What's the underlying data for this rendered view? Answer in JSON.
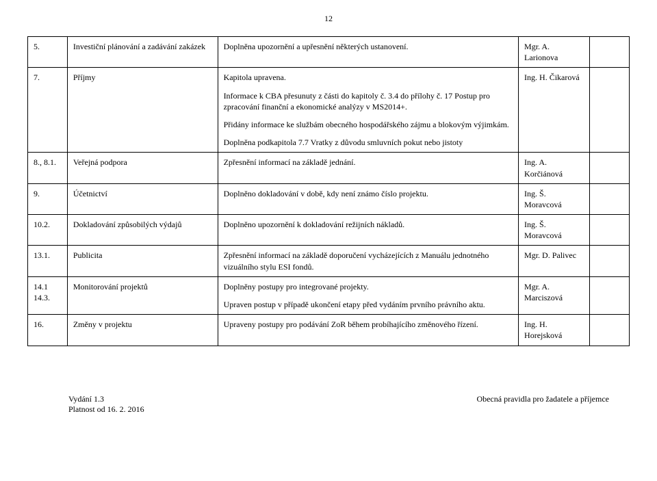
{
  "page_number": "12",
  "rows": [
    {
      "num": "5.",
      "title": "Investiční plánování a zadávání zakázek",
      "desc": [
        "Doplněna upozornění a upřesnění některých ustanovení."
      ],
      "author": "Mgr. A. Larionova"
    },
    {
      "num": "7.",
      "title": "Příjmy",
      "desc": [
        "Kapitola upravena.",
        "Informace k CBA přesunuty z části do kapitoly č. 3.4 do přílohy č. 17 Postup pro zpracování finanční a ekonomické analýzy v MS2014+.",
        "Přidány informace ke službám obecného hospodářského zájmu a blokovým výjimkám.",
        "Doplněna podkapitola 7.7 Vratky z důvodu smluvních pokut nebo jistoty"
      ],
      "author": "Ing. H. Čikarová"
    },
    {
      "num": "8., 8.1.",
      "title": "Veřejná podpora",
      "desc": [
        "Zpřesnění informací na základě jednání."
      ],
      "author": "Ing. A. Korčiánová"
    },
    {
      "num": "9.",
      "title": "Účetnictví",
      "desc": [
        "Doplněno dokladování v době, kdy není známo číslo projektu."
      ],
      "author": "Ing. Š. Moravcová"
    },
    {
      "num": "10.2.",
      "title": "Dokladování způsobilých výdajů",
      "desc": [
        "Doplněno upozornění k dokladování režijních nákladů."
      ],
      "author": "Ing. Š. Moravcová"
    },
    {
      "num": "13.1.",
      "title": "Publicita",
      "desc": [
        "Zpřesnění informací na základě doporučení vycházejících z Manuálu jednotného vizuálního stylu ESI fondů."
      ],
      "author": "Mgr. D. Palivec"
    },
    {
      "num": "14.1\n14.3.",
      "title": "Monitorování projektů",
      "desc": [
        "Doplněny postupy pro integrované projekty.",
        "Upraven postup v případě ukončení etapy před vydáním prvního právního aktu."
      ],
      "author": "Mgr. A. Marciszová"
    },
    {
      "num": "16.",
      "title": "Změny v projektu",
      "desc": [
        "Upraveny postupy pro podávání ZoR během probíhajícího změnového řízení."
      ],
      "author": "Ing. H. Horejsková"
    }
  ],
  "footer": {
    "left_line1": "Vydání 1.3",
    "left_line2": "Platnost od 16. 2. 2016",
    "right": "Obecná pravidla pro žadatele a příjemce"
  }
}
